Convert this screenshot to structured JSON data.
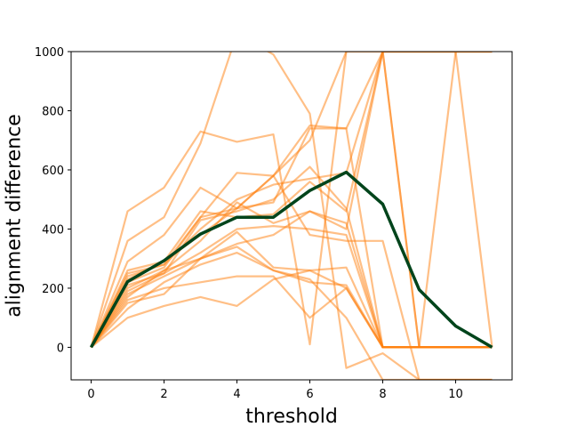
{
  "chart_data": {
    "type": "line",
    "title": "",
    "xlabel": "threshold",
    "ylabel": "alignment difference",
    "xlim": [
      -0.55,
      11.55
    ],
    "ylim": [
      -110,
      1000
    ],
    "x_ticks": [
      0,
      2,
      4,
      6,
      8,
      10
    ],
    "y_ticks": [
      0,
      200,
      400,
      600,
      800,
      1000
    ],
    "grid": false,
    "legend": "none",
    "colors": {
      "individual": "#ff7f0e",
      "mean": "#00441b",
      "frame": "#000000"
    },
    "individual_series": [
      {
        "x": [
          0,
          1,
          2,
          3,
          4,
          5,
          6,
          7,
          8,
          9,
          10,
          11
        ],
        "y": [
          0,
          460,
          540,
          730,
          695,
          720,
          10,
          1000,
          1000,
          1000,
          1000,
          1000
        ]
      },
      {
        "x": [
          0,
          1,
          2,
          3,
          4,
          5,
          6,
          7,
          8,
          9,
          10,
          11
        ],
        "y": [
          0,
          360,
          440,
          690,
          1060,
          990,
          790,
          -70,
          -20,
          -110,
          -110,
          -110
        ]
      },
      {
        "x": [
          0,
          1,
          2,
          3,
          4,
          5,
          6,
          7
        ],
        "y": [
          0,
          290,
          380,
          540,
          470,
          580,
          700,
          1000
        ]
      },
      {
        "x": [
          0,
          1,
          2,
          3,
          4,
          5,
          6,
          7,
          8,
          9,
          10,
          11
        ],
        "y": [
          0,
          260,
          290,
          380,
          470,
          490,
          740,
          740,
          1000,
          1000,
          1000,
          1000
        ]
      },
      {
        "x": [
          0,
          1,
          2,
          3,
          4,
          5,
          6,
          7,
          8,
          9,
          10,
          11
        ],
        "y": [
          0,
          250,
          280,
          400,
          500,
          550,
          570,
          590,
          1000,
          0,
          0,
          0
        ]
      },
      {
        "x": [
          0,
          1,
          2,
          3,
          4,
          5,
          6,
          7,
          8,
          9,
          10,
          11
        ],
        "y": [
          0,
          240,
          280,
          440,
          470,
          580,
          750,
          740,
          0,
          0,
          0,
          0
        ]
      },
      {
        "x": [
          0,
          1,
          2,
          3,
          4,
          5,
          6,
          7,
          8,
          9,
          10,
          11
        ],
        "y": [
          0,
          230,
          290,
          460,
          440,
          450,
          560,
          460,
          1000,
          0,
          0,
          0
        ]
      },
      {
        "x": [
          0,
          1,
          2,
          3,
          4,
          5,
          6,
          7,
          8,
          9,
          10,
          11
        ],
        "y": [
          0,
          220,
          270,
          440,
          590,
          580,
          380,
          360,
          360,
          -110,
          -110,
          -110
        ]
      },
      {
        "x": [
          0,
          1,
          2,
          3,
          4,
          5,
          6,
          7,
          8,
          9,
          10,
          11
        ],
        "y": [
          0,
          210,
          250,
          430,
          460,
          500,
          610,
          470,
          0,
          0,
          1000,
          1000
        ]
      },
      {
        "x": [
          0,
          1,
          2,
          3,
          4,
          5,
          6,
          7,
          8,
          9,
          10,
          11
        ],
        "y": [
          0,
          200,
          260,
          360,
          490,
          420,
          460,
          420,
          0,
          0,
          0,
          0
        ]
      },
      {
        "x": [
          0,
          1,
          2,
          3,
          4,
          5,
          6,
          7,
          8,
          9,
          10,
          11
        ],
        "y": [
          0,
          190,
          250,
          320,
          400,
          410,
          400,
          380,
          0,
          0,
          0,
          0
        ]
      },
      {
        "x": [
          0,
          1,
          2,
          3,
          4,
          5,
          6,
          7,
          8,
          9,
          10,
          11
        ],
        "y": [
          0,
          180,
          240,
          300,
          350,
          380,
          460,
          400,
          1000,
          1000,
          1000,
          0
        ]
      },
      {
        "x": [
          0,
          1,
          2,
          3,
          4,
          5,
          6,
          7,
          8,
          9,
          10,
          11
        ],
        "y": [
          0,
          170,
          260,
          300,
          340,
          260,
          220,
          210,
          0,
          0,
          0,
          0
        ]
      },
      {
        "x": [
          0,
          1,
          2,
          3,
          4,
          5,
          6,
          7,
          8,
          9,
          10,
          11
        ],
        "y": [
          0,
          160,
          200,
          220,
          240,
          240,
          100,
          200,
          0,
          0,
          0,
          0
        ]
      },
      {
        "x": [
          0,
          1,
          2,
          3,
          4,
          5,
          6,
          7,
          8,
          9,
          10,
          11
        ],
        "y": [
          0,
          150,
          180,
          300,
          390,
          270,
          260,
          200,
          0,
          0,
          0,
          0
        ]
      },
      {
        "x": [
          0,
          1,
          2,
          3,
          4,
          5,
          6,
          7,
          8,
          9,
          10,
          11
        ],
        "y": [
          0,
          130,
          220,
          280,
          320,
          260,
          230,
          100,
          -110,
          -110,
          -110,
          -110
        ]
      },
      {
        "x": [
          0,
          1,
          2,
          3,
          4,
          5,
          6,
          7,
          8,
          9,
          10,
          11
        ],
        "y": [
          0,
          100,
          140,
          170,
          140,
          230,
          260,
          270,
          0,
          0,
          0,
          0
        ]
      }
    ],
    "mean_series": {
      "x": [
        0,
        1,
        2,
        3,
        4,
        5,
        6,
        7,
        8,
        9,
        10,
        11
      ],
      "y": [
        0,
        222,
        293,
        383,
        440,
        440,
        530,
        592,
        484,
        195,
        72,
        0
      ]
    }
  }
}
